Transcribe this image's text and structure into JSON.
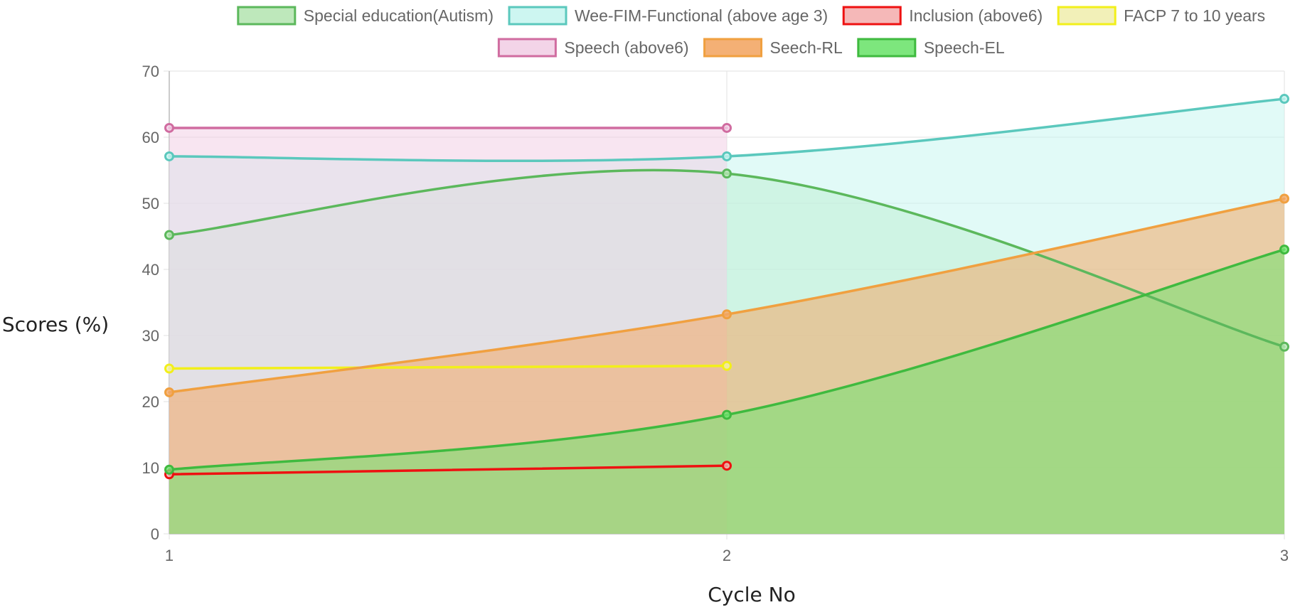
{
  "chart_data": {
    "type": "area",
    "x": [
      1,
      2,
      3
    ],
    "xlabel": "Cycle No",
    "ylabel": "Scores (%)",
    "ylim": [
      0,
      70
    ],
    "yticks": [
      0,
      10,
      20,
      30,
      40,
      50,
      60,
      70
    ],
    "xticks": [
      "1",
      "2",
      "3"
    ],
    "grid": true,
    "legend_position": "top",
    "series": [
      {
        "name": "Special education(Autism)",
        "values": [
          45.2,
          54.5,
          28.3
        ],
        "line_color": "#5cb85c",
        "fill_color": "#b7e6b4",
        "fill": true
      },
      {
        "name": "Wee-FIM-Functional (above age 3)",
        "values": [
          57.1,
          57.1,
          65.8
        ],
        "line_color": "#5bc8bd",
        "fill_color": "#c8f5f0",
        "fill": true
      },
      {
        "name": "Inclusion (above6)",
        "values": [
          9.0,
          10.3,
          null
        ],
        "line_color": "#ee1111",
        "fill_color": "#f4b0b0",
        "fill": false
      },
      {
        "name": "FACP 7 to 10 years",
        "values": [
          25.0,
          25.4,
          null
        ],
        "line_color": "#f2ef1a",
        "fill_color": "#f1eeb0",
        "fill": false
      },
      {
        "name": "Speech (above6)",
        "values": [
          61.4,
          61.4,
          null
        ],
        "line_color": "#d06ca0",
        "fill_color": "#f2cfe6",
        "fill": true
      },
      {
        "name": "Seech-RL",
        "values": [
          21.4,
          33.2,
          50.7
        ],
        "line_color": "#f0a040",
        "fill_color": "#f3a766",
        "fill": true
      },
      {
        "name": "Speech-EL",
        "values": [
          9.7,
          18.0,
          43.0
        ],
        "line_color": "#3fba3f",
        "fill_color": "#6fe36f",
        "fill": true
      }
    ]
  }
}
